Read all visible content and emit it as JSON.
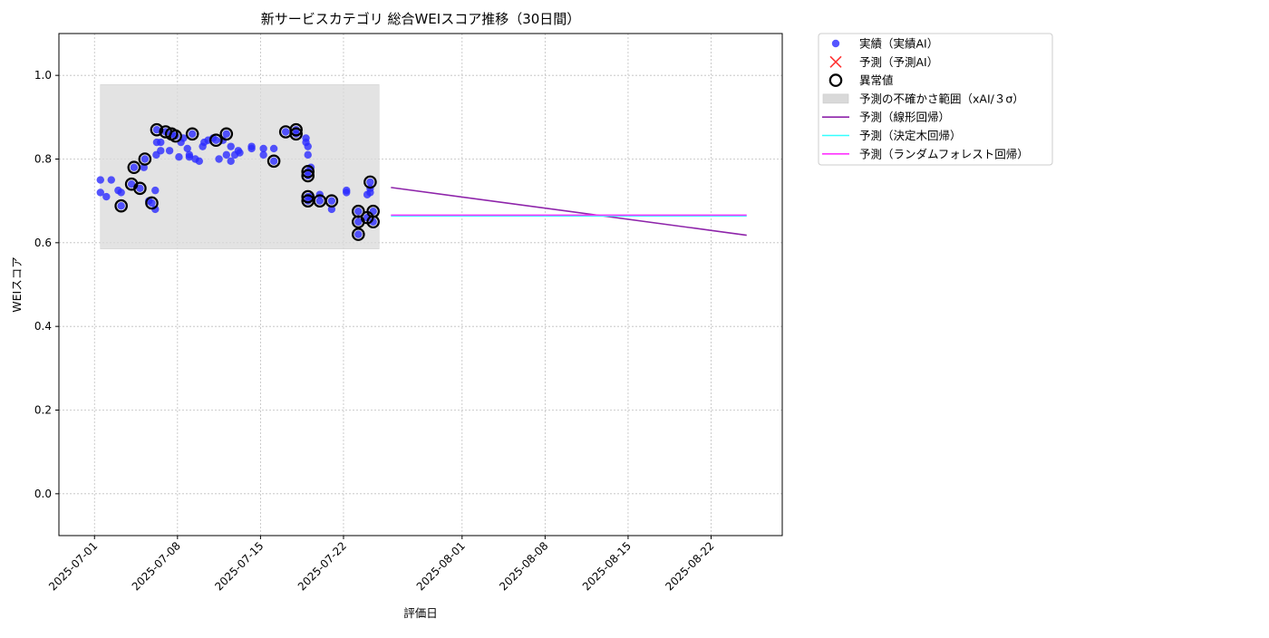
{
  "chart_data": {
    "type": "scatter",
    "title": "新サービスカテゴリ 総合WEIスコア推移（30日間）",
    "xlabel": "評価日",
    "ylabel": "WEIスコア",
    "xlim": [
      "2025-06-28",
      "2025-08-28"
    ],
    "ylim": [
      -0.1,
      1.1
    ],
    "yticks": [
      0.0,
      0.2,
      0.4,
      0.6,
      0.8,
      1.0
    ],
    "ytick_labels": [
      "0.0",
      "0.2",
      "0.4",
      "0.6",
      "0.8",
      "1.0"
    ],
    "xticks": [
      "2025-07-01",
      "2025-07-08",
      "2025-07-15",
      "2025-07-22",
      "2025-08-01",
      "2025-08-08",
      "2025-08-15",
      "2025-08-22"
    ],
    "grid": true,
    "legend_position": "outside-upper-right",
    "colors": {
      "actual": "#2b2bff",
      "predicted_marker": "#ff3333",
      "anomaly": "#000000",
      "band": "#d9d9d9",
      "linear": "#8e24aa",
      "decision_tree": "#33ffff",
      "random_forest": "#ff33ff"
    },
    "legend": [
      {
        "key": "actual",
        "label": "実績（実績AI）",
        "kind": "dot"
      },
      {
        "key": "predicted",
        "label": "予測（予測AI）",
        "kind": "x"
      },
      {
        "key": "anomaly",
        "label": "異常値",
        "kind": "ring"
      },
      {
        "key": "band",
        "label": "予測の不確かさ範囲（xAI/３σ）",
        "kind": "patch"
      },
      {
        "key": "linear",
        "label": "予測（線形回帰）",
        "kind": "line"
      },
      {
        "key": "decision_tree",
        "label": "予測（決定木回帰）",
        "kind": "line"
      },
      {
        "key": "random_forest",
        "label": "予測（ランダムフォレスト回帰）",
        "kind": "line"
      }
    ],
    "uncertainty_band": {
      "x": [
        "2025-07-01 12:00",
        "2025-07-25"
      ],
      "y": [
        0.585,
        0.978
      ]
    },
    "series": [
      {
        "name": "実績（実績AI）",
        "points": [
          [
            "2025-07-01 12:00",
            0.75
          ],
          [
            "2025-07-01 12:00",
            0.72
          ],
          [
            "2025-07-02 00:00",
            0.71
          ],
          [
            "2025-07-02 10:00",
            0.75
          ],
          [
            "2025-07-03 00:00",
            0.725
          ],
          [
            "2025-07-03 06:00",
            0.72
          ],
          [
            "2025-07-03 06:00",
            0.688
          ],
          [
            "2025-07-04 03:00",
            0.74
          ],
          [
            "2025-07-04 08:00",
            0.78
          ],
          [
            "2025-07-04 20:00",
            0.73
          ],
          [
            "2025-07-05 04:00",
            0.78
          ],
          [
            "2025-07-05 06:00",
            0.8
          ],
          [
            "2025-07-05 14:00",
            0.7
          ],
          [
            "2025-07-05 20:00",
            0.695
          ],
          [
            "2025-07-06 03:00",
            0.725
          ],
          [
            "2025-07-06 03:00",
            0.68
          ],
          [
            "2025-07-06 05:00",
            0.81
          ],
          [
            "2025-07-06 06:00",
            0.84
          ],
          [
            "2025-07-06 06:00",
            0.87
          ],
          [
            "2025-07-06 14:00",
            0.84
          ],
          [
            "2025-07-06 14:00",
            0.82
          ],
          [
            "2025-07-07 00:00",
            0.865
          ],
          [
            "2025-07-07 08:00",
            0.82
          ],
          [
            "2025-07-07 12:00",
            0.86
          ],
          [
            "2025-07-07 20:00",
            0.855
          ],
          [
            "2025-07-08 03:00",
            0.805
          ],
          [
            "2025-07-08 07:00",
            0.84
          ],
          [
            "2025-07-08 12:00",
            0.85
          ],
          [
            "2025-07-08 20:00",
            0.825
          ],
          [
            "2025-07-09 00:00",
            0.81
          ],
          [
            "2025-07-09 00:00",
            0.805
          ],
          [
            "2025-07-09 06:00",
            0.86
          ],
          [
            "2025-07-09 12:00",
            0.8
          ],
          [
            "2025-07-09 20:00",
            0.795
          ],
          [
            "2025-07-10 03:00",
            0.83
          ],
          [
            "2025-07-10 06:00",
            0.84
          ],
          [
            "2025-07-10 14:00",
            0.845
          ],
          [
            "2025-07-11 00:00",
            0.85
          ],
          [
            "2025-07-11 06:00",
            0.845
          ],
          [
            "2025-07-11 12:00",
            0.8
          ],
          [
            "2025-07-11 20:00",
            0.845
          ],
          [
            "2025-07-12 03:00",
            0.86
          ],
          [
            "2025-07-12 03:00",
            0.81
          ],
          [
            "2025-07-12 12:00",
            0.83
          ],
          [
            "2025-07-12 12:00",
            0.795
          ],
          [
            "2025-07-12 20:00",
            0.81
          ],
          [
            "2025-07-13 03:00",
            0.82
          ],
          [
            "2025-07-13 06:00",
            0.815
          ],
          [
            "2025-07-14 06:00",
            0.83
          ],
          [
            "2025-07-14 06:00",
            0.825
          ],
          [
            "2025-07-15 06:00",
            0.825
          ],
          [
            "2025-07-15 06:00",
            0.81
          ],
          [
            "2025-07-16 03:00",
            0.825
          ],
          [
            "2025-07-16 03:00",
            0.795
          ],
          [
            "2025-07-17 03:00",
            0.865
          ],
          [
            "2025-07-18 00:00",
            0.87
          ],
          [
            "2025-07-18 00:00",
            0.86
          ],
          [
            "2025-07-18 20:00",
            0.85
          ],
          [
            "2025-07-18 20:00",
            0.84
          ],
          [
            "2025-07-19 00:00",
            0.83
          ],
          [
            "2025-07-19 00:00",
            0.81
          ],
          [
            "2025-07-19 00:00",
            0.77
          ],
          [
            "2025-07-19 00:00",
            0.76
          ],
          [
            "2025-07-19 00:00",
            0.71
          ],
          [
            "2025-07-19 00:00",
            0.7
          ],
          [
            "2025-07-19 06:00",
            0.78
          ],
          [
            "2025-07-19 06:00",
            0.71
          ],
          [
            "2025-07-20 00:00",
            0.715
          ],
          [
            "2025-07-20 00:00",
            0.7
          ],
          [
            "2025-07-21 00:00",
            0.7
          ],
          [
            "2025-07-21 00:00",
            0.68
          ],
          [
            "2025-07-22 06:00",
            0.725
          ],
          [
            "2025-07-22 06:00",
            0.72
          ],
          [
            "2025-07-23 06:00",
            0.675
          ],
          [
            "2025-07-23 06:00",
            0.65
          ],
          [
            "2025-07-23 06:00",
            0.62
          ],
          [
            "2025-07-24 00:00",
            0.715
          ],
          [
            "2025-07-24 00:00",
            0.66
          ],
          [
            "2025-07-24 06:00",
            0.745
          ],
          [
            "2025-07-24 06:00",
            0.73
          ],
          [
            "2025-07-24 06:00",
            0.72
          ],
          [
            "2025-07-24 12:00",
            0.675
          ],
          [
            "2025-07-24 12:00",
            0.65
          ]
        ]
      },
      {
        "name": "異常値",
        "points": [
          [
            "2025-07-03 06:00",
            0.688
          ],
          [
            "2025-07-04 03:00",
            0.74
          ],
          [
            "2025-07-04 08:00",
            0.78
          ],
          [
            "2025-07-04 20:00",
            0.73
          ],
          [
            "2025-07-05 06:00",
            0.8
          ],
          [
            "2025-07-05 20:00",
            0.695
          ],
          [
            "2025-07-06 06:00",
            0.87
          ],
          [
            "2025-07-07 00:00",
            0.865
          ],
          [
            "2025-07-07 12:00",
            0.86
          ],
          [
            "2025-07-07 20:00",
            0.855
          ],
          [
            "2025-07-09 06:00",
            0.86
          ],
          [
            "2025-07-11 06:00",
            0.845
          ],
          [
            "2025-07-12 03:00",
            0.86
          ],
          [
            "2025-07-16 03:00",
            0.795
          ],
          [
            "2025-07-17 03:00",
            0.865
          ],
          [
            "2025-07-18 00:00",
            0.87
          ],
          [
            "2025-07-18 00:00",
            0.86
          ],
          [
            "2025-07-19 00:00",
            0.77
          ],
          [
            "2025-07-19 00:00",
            0.76
          ],
          [
            "2025-07-19 00:00",
            0.71
          ],
          [
            "2025-07-19 00:00",
            0.7
          ],
          [
            "2025-07-20 00:00",
            0.7
          ],
          [
            "2025-07-21 00:00",
            0.7
          ],
          [
            "2025-07-23 06:00",
            0.675
          ],
          [
            "2025-07-23 06:00",
            0.65
          ],
          [
            "2025-07-23 06:00",
            0.62
          ],
          [
            "2025-07-24 00:00",
            0.66
          ],
          [
            "2025-07-24 06:00",
            0.745
          ],
          [
            "2025-07-24 12:00",
            0.675
          ],
          [
            "2025-07-24 12:00",
            0.65
          ]
        ]
      },
      {
        "name": "予測（線形回帰）",
        "x": [
          "2025-07-26",
          "2025-08-25"
        ],
        "y": [
          0.732,
          0.618
        ]
      },
      {
        "name": "予測（決定木回帰）",
        "x": [
          "2025-07-26",
          "2025-08-25"
        ],
        "y": [
          0.664,
          0.664
        ]
      },
      {
        "name": "予測（ランダムフォレスト回帰）",
        "x": [
          "2025-07-26",
          "2025-08-25"
        ],
        "y": [
          0.666,
          0.666
        ]
      }
    ]
  }
}
